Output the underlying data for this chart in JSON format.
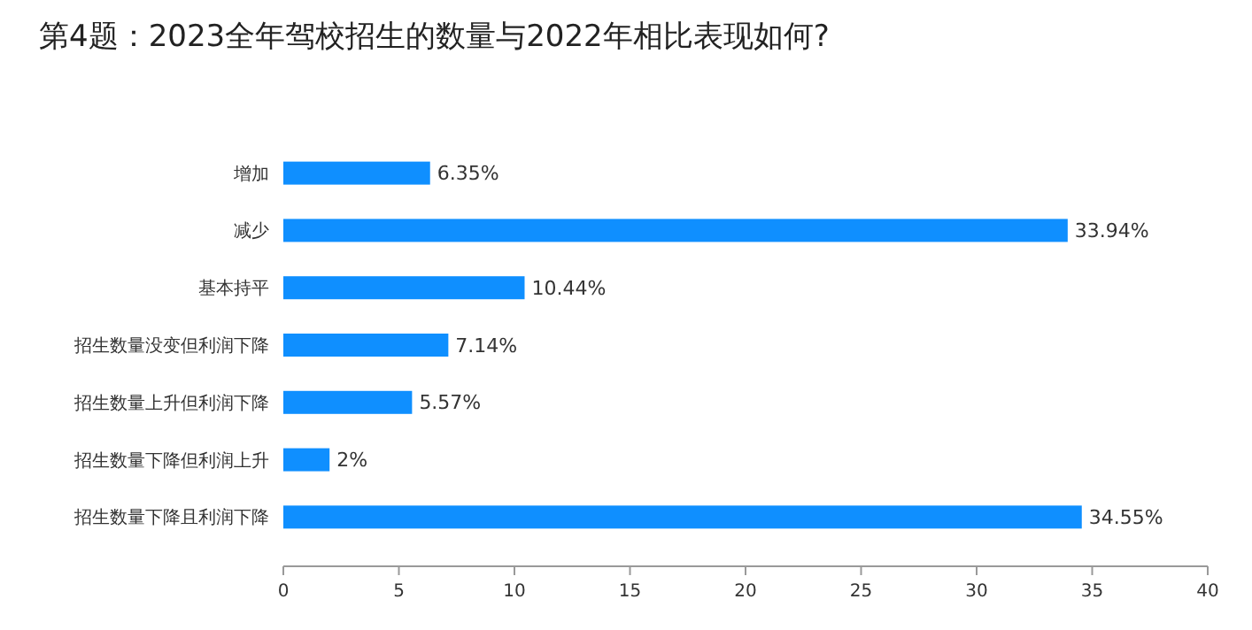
{
  "chart_data": {
    "type": "bar",
    "orientation": "horizontal",
    "title": "第4题：2023全年驾校招生的数量与2022年相比表现如何?",
    "categories": [
      "增加",
      "减少",
      "基本持平",
      "招生数量没变但利润下降",
      "招生数量上升但利润下降",
      "招生数量下降但利润上升",
      "招生数量下降且利润下降"
    ],
    "values": [
      6.35,
      33.94,
      10.44,
      7.14,
      5.57,
      2,
      34.55
    ],
    "value_labels": [
      "6.35%",
      "33.94%",
      "10.44%",
      "7.14%",
      "5.57%",
      "2%",
      "34.55%"
    ],
    "color": "#0f8fff",
    "xlim": [
      0,
      40
    ],
    "xticks": [
      0,
      5,
      10,
      15,
      20,
      25,
      30,
      35,
      40
    ],
    "grid": false
  }
}
